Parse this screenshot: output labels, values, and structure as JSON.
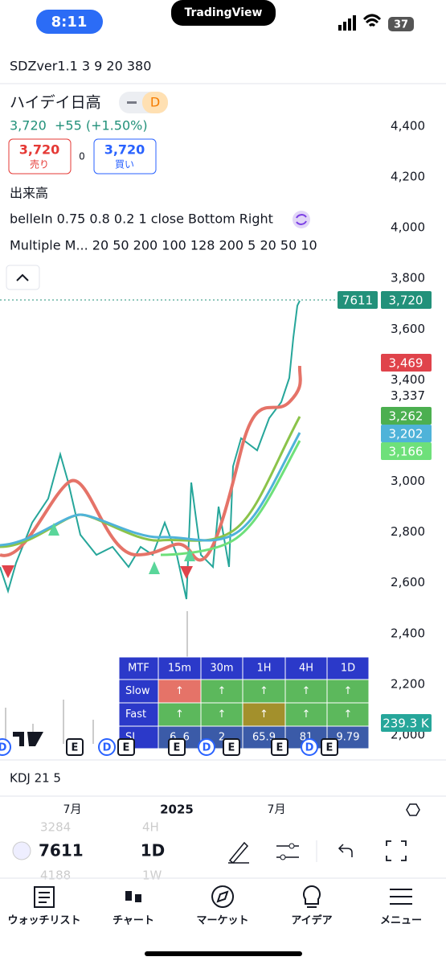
{
  "status": {
    "time": "8:11",
    "app": "TradingView",
    "battery": "37"
  },
  "indicator_title": "SDZver1.1 3 9 20 380",
  "symbol": {
    "name": "ハイデイ日高",
    "interval_badge": "D",
    "price": "3,720",
    "change": "+55 (+1.50%)"
  },
  "order": {
    "sell_price": "3,720",
    "sell_label": "売り",
    "spread": "0",
    "buy_price": "3,720",
    "buy_label": "買い"
  },
  "indicators": [
    "出来高",
    "belleIn 0.75 0.8 0.2 1 close Bottom Right",
    "Multiple M...   20 50 200 100 128 200 5 20 50 10"
  ],
  "price_axis": {
    "ticks": [
      {
        "value": 4400,
        "label": "4,400"
      },
      {
        "value": 4200,
        "label": "4,200"
      },
      {
        "value": 4000,
        "label": "4,000"
      },
      {
        "value": 3800,
        "label": "3,800"
      },
      {
        "value": 3600,
        "label": "3,600"
      },
      {
        "value": 3400,
        "label": "3,400"
      },
      {
        "value": 3337,
        "label": "3,337"
      },
      {
        "value": 3000,
        "label": "3,000"
      },
      {
        "value": 2800,
        "label": "2,800"
      },
      {
        "value": 2600,
        "label": "2,600"
      },
      {
        "value": 2400,
        "label": "2,400"
      },
      {
        "value": 2200,
        "label": "2,200"
      },
      {
        "value": 2000,
        "label": "2,000"
      }
    ]
  },
  "badges": [
    {
      "text": "3,720",
      "color": "#22917a"
    },
    {
      "text": "3,469",
      "color": "#e0434b"
    },
    {
      "text": "3,262",
      "color": "#4caf50"
    },
    {
      "text": "3,202",
      "color": "#4fb3d9"
    },
    {
      "text": "3,166",
      "color": "#6ee07a"
    },
    {
      "text": "239.3 K",
      "color": "#26a69a"
    }
  ],
  "last_symbol_badge": "7611",
  "mtf_table": {
    "header": [
      "MTF",
      "15m",
      "30m",
      "1H",
      "4H",
      "1D"
    ],
    "rows": [
      {
        "label": "Slow",
        "cells": [
          "↑",
          "↑",
          "↑",
          "↑",
          "↑"
        ],
        "colors": [
          "#e57368",
          "#5cb85c",
          "#5cb85c",
          "#5cb85c",
          "#5cb85c"
        ]
      },
      {
        "label": "Fast",
        "cells": [
          "↑",
          "↑",
          "↑",
          "↑",
          "↑"
        ],
        "colors": [
          "#5cb85c",
          "#5cb85c",
          "#a3902c",
          "#5cb85c",
          "#5cb85c"
        ]
      },
      {
        "label": "SI",
        "cells": [
          "6 .6",
          "2",
          "65.9",
          "81",
          "9.79"
        ],
        "colors": [
          "#3b5ba8",
          "#3b5ba8",
          "#3b5ba8",
          "#3b5ba8",
          "#3b5ba8"
        ]
      }
    ]
  },
  "events": [
    "D",
    "E",
    "D",
    "E",
    "E",
    "D",
    "E",
    "E",
    "D",
    "E"
  ],
  "lower_pane": "KDJ 21 5",
  "time_axis": [
    "7月",
    "2025",
    "7月"
  ],
  "toolbar": {
    "symbol": "7611",
    "interval": "1D",
    "ghost": [
      "3284",
      "4H",
      "4188",
      "1W"
    ]
  },
  "tabs": [
    "ウォッチリスト",
    "チャート",
    "マーケット",
    "アイデア",
    "メニュー"
  ]
}
